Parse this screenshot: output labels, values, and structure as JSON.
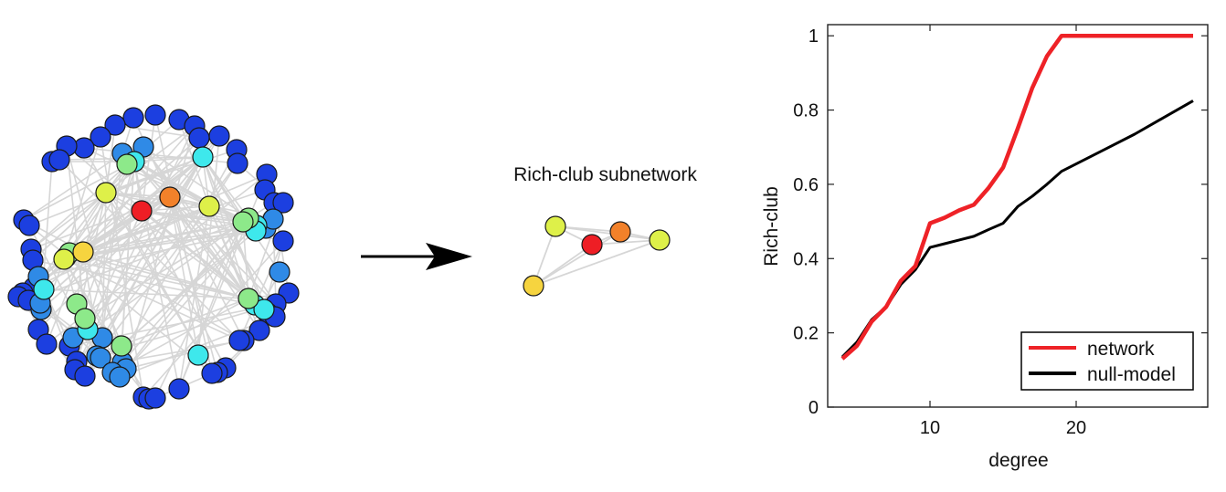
{
  "subnetwork_title": "Rich-club subnetwork",
  "chart_data": {
    "type": "line",
    "xlabel": "degree",
    "ylabel": "Rich-club",
    "xlim": [
      3,
      29
    ],
    "ylim": [
      0,
      1.03
    ],
    "xticks": [
      10,
      20
    ],
    "yticks": [
      0,
      0.2,
      0.4,
      0.6,
      0.8,
      1
    ],
    "grid": false,
    "legend_position": "bottom-right",
    "series": [
      {
        "name": "network",
        "color": "#ee2227",
        "x": [
          4,
          5,
          6,
          7,
          8,
          9,
          10,
          11,
          12,
          13,
          14,
          15,
          16,
          17,
          18,
          19,
          20,
          22,
          24,
          26,
          28
        ],
        "y": [
          0.13,
          0.165,
          0.23,
          0.27,
          0.34,
          0.38,
          0.495,
          0.51,
          0.53,
          0.545,
          0.59,
          0.645,
          0.75,
          0.86,
          0.945,
          1.0,
          1.0,
          1.0,
          1.0,
          1.0,
          1.0
        ]
      },
      {
        "name": "null-model",
        "color": "#000000",
        "x": [
          4,
          5,
          6,
          7,
          8,
          9,
          10,
          11,
          12,
          13,
          14,
          15,
          16,
          17,
          18,
          19,
          20,
          22,
          24,
          26,
          28
        ],
        "y": [
          0.135,
          0.175,
          0.235,
          0.27,
          0.33,
          0.37,
          0.43,
          0.44,
          0.45,
          0.46,
          0.478,
          0.495,
          0.54,
          0.568,
          0.6,
          0.635,
          0.655,
          0.695,
          0.735,
          0.78,
          0.825
        ]
      }
    ]
  },
  "network_colors": {
    "deg1": "#1c3fe0",
    "deg2": "#2f8ae6",
    "deg3": "#3ee8ec",
    "deg4": "#8de98a",
    "deg5": "#def049",
    "deg6": "#f6d43f",
    "deg7": "#f2812a",
    "deg8": "#ee1e25",
    "edge": "#d6d6d6"
  }
}
